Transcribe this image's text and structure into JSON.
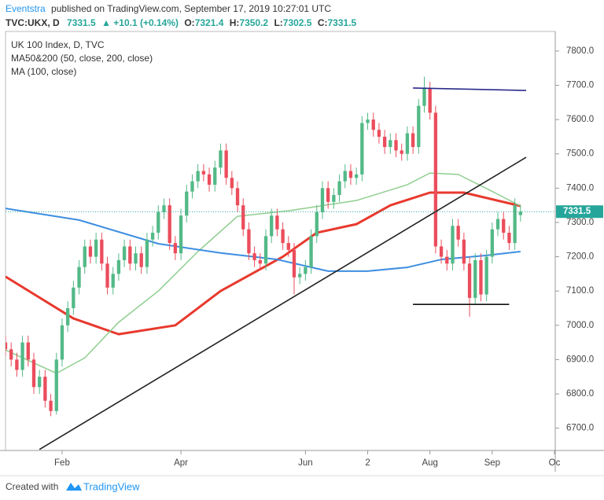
{
  "chart_data": {
    "type": "candlestick",
    "header": {
      "author": "Eventstra",
      "published": "published on TradingView.com, September 17, 2019 10:27:01 UTC",
      "symbol": "TVC:UKX, D",
      "price": "7331.5",
      "change": "▲ +10.1 (+0.14%)",
      "ohlc": [
        {
          "label": "O:",
          "value": "7321.4"
        },
        {
          "label": "H:",
          "value": "7350.2"
        },
        {
          "label": "L:",
          "value": "7302.5"
        },
        {
          "label": "C:",
          "value": "7331.5"
        }
      ]
    },
    "legend": [
      "UK 100 Index, D, TVC",
      "MA50&200 (50, close, 200, close)",
      "MA (100, close)"
    ],
    "footer": {
      "created": "Created with",
      "brand": "TradingView"
    },
    "up_color": "#53b987",
    "down_color": "#eb4d5c",
    "open": [
      6950,
      6930,
      6900,
      6870,
      6950,
      6900,
      6820,
      6850,
      6780,
      6750,
      6900,
      7000,
      7050,
      7110,
      7170,
      7230,
      7200,
      7250,
      7180,
      7110,
      7150,
      7190,
      7230,
      7180,
      7210,
      7170,
      7250,
      7270,
      7330,
      7350,
      7240,
      7210,
      7320,
      7390,
      7420,
      7450,
      7440,
      7410,
      7460,
      7510,
      7430,
      7400,
      7350,
      7280,
      7210,
      7190,
      7180,
      7260,
      7320,
      7280,
      7240,
      7220,
      7140,
      7150,
      7170,
      7260,
      7330,
      7400,
      7360,
      7380,
      7420,
      7450,
      7430,
      7440,
      7590,
      7600,
      7570,
      7550,
      7520,
      7540,
      7510,
      7500,
      7560,
      7520,
      7640,
      7690,
      7620,
      7230,
      7200,
      7180,
      7290,
      7250,
      7180,
      7080,
      7190,
      7090,
      7200,
      7280,
      7310,
      7270,
      7240,
      7321.4
    ],
    "high": [
      6970,
      6950,
      6920,
      6970,
      6970,
      6920,
      6870,
      6870,
      6800,
      6920,
      7020,
      7070,
      7130,
      7190,
      7250,
      7250,
      7270,
      7270,
      7200,
      7170,
      7210,
      7250,
      7250,
      7230,
      7230,
      7270,
      7290,
      7350,
      7370,
      7370,
      7260,
      7340,
      7410,
      7440,
      7470,
      7470,
      7460,
      7480,
      7530,
      7530,
      7450,
      7420,
      7370,
      7300,
      7230,
      7210,
      7280,
      7340,
      7340,
      7300,
      7260,
      7240,
      7170,
      7190,
      7280,
      7350,
      7420,
      7420,
      7400,
      7440,
      7470,
      7470,
      7460,
      7610,
      7620,
      7620,
      7590,
      7570,
      7560,
      7560,
      7530,
      7580,
      7580,
      7660,
      7725,
      7710,
      7640,
      7250,
      7220,
      7310,
      7310,
      7270,
      7200,
      7210,
      7210,
      7220,
      7300,
      7330,
      7330,
      7290,
      7370,
      7350.2
    ],
    "low": [
      6910,
      6880,
      6850,
      6850,
      6880,
      6800,
      6800,
      6760,
      6735,
      6740,
      6880,
      6980,
      7030,
      7090,
      7150,
      7180,
      7180,
      7160,
      7090,
      7090,
      7130,
      7170,
      7160,
      7160,
      7150,
      7150,
      7230,
      7250,
      7310,
      7220,
      7190,
      7190,
      7300,
      7370,
      7400,
      7420,
      7390,
      7390,
      7440,
      7410,
      7380,
      7330,
      7260,
      7190,
      7170,
      7160,
      7160,
      7240,
      7260,
      7220,
      7200,
      7090,
      7120,
      7130,
      7150,
      7240,
      7310,
      7340,
      7340,
      7360,
      7400,
      7410,
      7410,
      7420,
      7570,
      7550,
      7530,
      7500,
      7500,
      7490,
      7480,
      7480,
      7500,
      7500,
      7620,
      7600,
      7210,
      7180,
      7160,
      7160,
      7230,
      7160,
      7025,
      7060,
      7070,
      7070,
      7180,
      7260,
      7250,
      7220,
      7220,
      7302.5
    ],
    "close": [
      6930,
      6900,
      6870,
      6950,
      6900,
      6820,
      6850,
      6780,
      6750,
      6900,
      7000,
      7050,
      7110,
      7170,
      7230,
      7200,
      7250,
      7180,
      7110,
      7150,
      7190,
      7230,
      7180,
      7210,
      7170,
      7250,
      7270,
      7330,
      7350,
      7240,
      7210,
      7320,
      7390,
      7420,
      7450,
      7440,
      7410,
      7460,
      7510,
      7430,
      7400,
      7350,
      7280,
      7210,
      7190,
      7180,
      7260,
      7320,
      7280,
      7240,
      7220,
      7140,
      7150,
      7170,
      7260,
      7330,
      7400,
      7360,
      7380,
      7420,
      7450,
      7430,
      7440,
      7590,
      7600,
      7570,
      7550,
      7520,
      7540,
      7510,
      7500,
      7560,
      7520,
      7640,
      7690,
      7620,
      7230,
      7200,
      7180,
      7290,
      7250,
      7180,
      7080,
      7190,
      7090,
      7200,
      7280,
      7310,
      7270,
      7240,
      7350,
      7331.5
    ],
    "series": [
      {
        "color": "#e8392d",
        "width": 3,
        "x": [
          0,
          12,
          20,
          30,
          38,
          49,
          55,
          62,
          68,
          75,
          81,
          91
        ],
        "values": [
          7142,
          7020,
          6974,
          7000,
          7100,
          7200,
          7270,
          7295,
          7350,
          7387,
          7387,
          7348
        ]
      },
      {
        "color": "#8fce8f",
        "width": 1.5,
        "x": [
          0,
          9,
          14,
          20,
          27,
          34,
          41,
          50,
          62,
          71,
          75,
          80,
          85,
          91
        ],
        "values": [
          6928,
          6860,
          6905,
          7009,
          7100,
          7215,
          7318,
          7334,
          7364,
          7410,
          7444,
          7440,
          7399,
          7348
        ]
      },
      {
        "color": "#3d8ee0",
        "width": 2,
        "x": [
          0,
          13,
          27,
          38,
          48,
          57,
          64,
          71,
          77,
          85,
          91
        ],
        "values": [
          7341,
          7307,
          7238,
          7211,
          7192,
          7158,
          7158,
          7169,
          7192,
          7204,
          7215
        ]
      }
    ],
    "drawings": [
      {
        "color": "#222222",
        "x": [
          6,
          92
        ],
        "values": [
          6638,
          7490
        ]
      },
      {
        "color": "#2a2a8c",
        "x": [
          72,
          92
        ],
        "values": [
          7692,
          7685
        ]
      },
      {
        "color": "#111111",
        "x": [
          72,
          89
        ],
        "values": [
          7061,
          7061
        ]
      }
    ],
    "last_price": 7331.5,
    "price_color": "#26a69a",
    "xlim": [
      0,
      97
    ],
    "xticks": [
      {
        "value": 10,
        "label": "Feb"
      },
      {
        "value": 31,
        "label": "Apr"
      },
      {
        "value": 53,
        "label": "Jun"
      },
      {
        "value": 64,
        "label": "2"
      },
      {
        "value": 75,
        "label": "Aug"
      },
      {
        "value": 86,
        "label": "Sep"
      },
      {
        "value": 97,
        "label": "Oc"
      }
    ],
    "ylim": [
      6635,
      7857
    ],
    "yticks": [
      {
        "value": 6700,
        "label": "6700.0"
      },
      {
        "value": 6800,
        "label": "6800.0"
      },
      {
        "value": 6900,
        "label": "6900.0"
      },
      {
        "value": 7000,
        "label": "7000.0"
      },
      {
        "value": 7100,
        "label": "7100.0"
      },
      {
        "value": 7200,
        "label": "7200.0"
      },
      {
        "value": 7300,
        "label": "7300.0"
      },
      {
        "value": 7400,
        "label": "7400.0"
      },
      {
        "value": 7500,
        "label": "7500.0"
      },
      {
        "value": 7600,
        "label": "7600.0"
      },
      {
        "value": 7700,
        "label": "7700.0"
      },
      {
        "value": 7800,
        "label": "7800.0"
      }
    ]
  }
}
